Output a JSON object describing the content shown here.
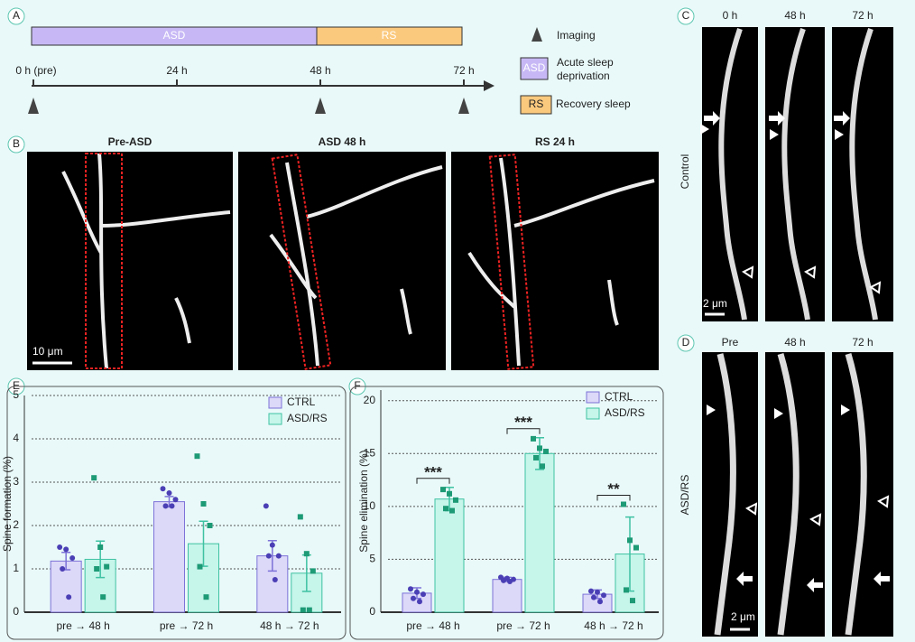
{
  "panel_labels": [
    "A",
    "B",
    "C",
    "D",
    "E",
    "F"
  ],
  "timeline": {
    "phases": [
      "ASD",
      "RS"
    ],
    "time_labels": [
      "0 h (pre)",
      "24 h",
      "48 h",
      "72 h"
    ],
    "legend": {
      "imaging": "Imaging",
      "asd_key": "ASD",
      "asd_text": "Acute sleep deprivation",
      "rs_key": "RS",
      "rs_text": "Recovery sleep"
    }
  },
  "images_b": {
    "titles": [
      "Pre-ASD",
      "ASD 48 h",
      "RS 24 h"
    ],
    "scale_bar": "10 μm"
  },
  "images_c": {
    "row_label": "Control",
    "titles": [
      "0 h",
      "48 h",
      "72 h"
    ],
    "scale_bar": "2 μm"
  },
  "images_d": {
    "row_label": "ASD/RS",
    "titles": [
      "Pre",
      "48 h",
      "72 h"
    ],
    "scale_bar": "2 μm"
  },
  "chart_data": [
    {
      "type": "bar",
      "ylabel": "Spine formation (%)",
      "categories": [
        "pre → 48 h",
        "pre → 72 h",
        "48 h → 72 h"
      ],
      "series": [
        {
          "name": "CTRL",
          "color": "#dcd8f8",
          "edge_color": "#7d72d8",
          "point_color": "#4b3fb5",
          "values": [
            1.18,
            2.55,
            1.3
          ],
          "errors": [
            0.2,
            0.12,
            0.35
          ],
          "points": [
            [
              1.5,
              1.45,
              1.25,
              1.0,
              0.35
            ],
            [
              2.85,
              2.75,
              2.6,
              2.45,
              2.45
            ],
            [
              2.45,
              1.55,
              1.3,
              1.3,
              0.75
            ]
          ]
        },
        {
          "name": "ASD/RS",
          "color": "#c6f5ea",
          "edge_color": "#3fc2a2",
          "point_color": "#1d9a76",
          "values": [
            1.22,
            1.58,
            0.9
          ],
          "errors": [
            0.42,
            0.52,
            0.42
          ],
          "points": [
            [
              3.1,
              1.5,
              1.05,
              1.0,
              0.35
            ],
            [
              3.6,
              2.5,
              2.0,
              1.05,
              0.35
            ],
            [
              2.2,
              1.35,
              0.95,
              0.05,
              0.05
            ]
          ]
        }
      ],
      "ylim": [
        0,
        5
      ],
      "yticks": [
        0,
        1,
        2,
        3,
        4,
        5
      ],
      "grid": true,
      "legend": "upper right"
    },
    {
      "type": "bar",
      "ylabel": "Spine elimination (%)",
      "categories": [
        "pre → 48 h",
        "pre → 72 h",
        "48 h → 72 h"
      ],
      "series": [
        {
          "name": "CTRL",
          "color": "#dcd8f8",
          "edge_color": "#7d72d8",
          "point_color": "#4b3fb5",
          "values": [
            1.8,
            3.1,
            1.7
          ],
          "errors": [
            0.5,
            0.2,
            0.4
          ],
          "points": [
            [
              2.2,
              1.9,
              1.7,
              1.3,
              1.0
            ],
            [
              3.3,
              3.2,
              3.1,
              3.0,
              2.9
            ],
            [
              2.0,
              1.9,
              1.6,
              1.4,
              1.0
            ]
          ]
        },
        {
          "name": "ASD/RS",
          "color": "#c6f5ea",
          "edge_color": "#3fc2a2",
          "point_color": "#1d9a76",
          "values": [
            10.7,
            15.0,
            5.5
          ],
          "errors": [
            1.1,
            1.5,
            3.5
          ],
          "points": [
            [
              11.6,
              11.2,
              10.6,
              9.8,
              9.6
            ],
            [
              16.4,
              15.5,
              15.2,
              14.6,
              13.8
            ],
            [
              10.2,
              6.8,
              6.1,
              2.1,
              1.1
            ]
          ]
        }
      ],
      "ylim": [
        0,
        21
      ],
      "yticks": [
        0,
        5,
        10,
        15,
        20
      ],
      "grid": true,
      "legend": "upper right",
      "annotations": [
        "***",
        "***",
        "**"
      ]
    }
  ]
}
